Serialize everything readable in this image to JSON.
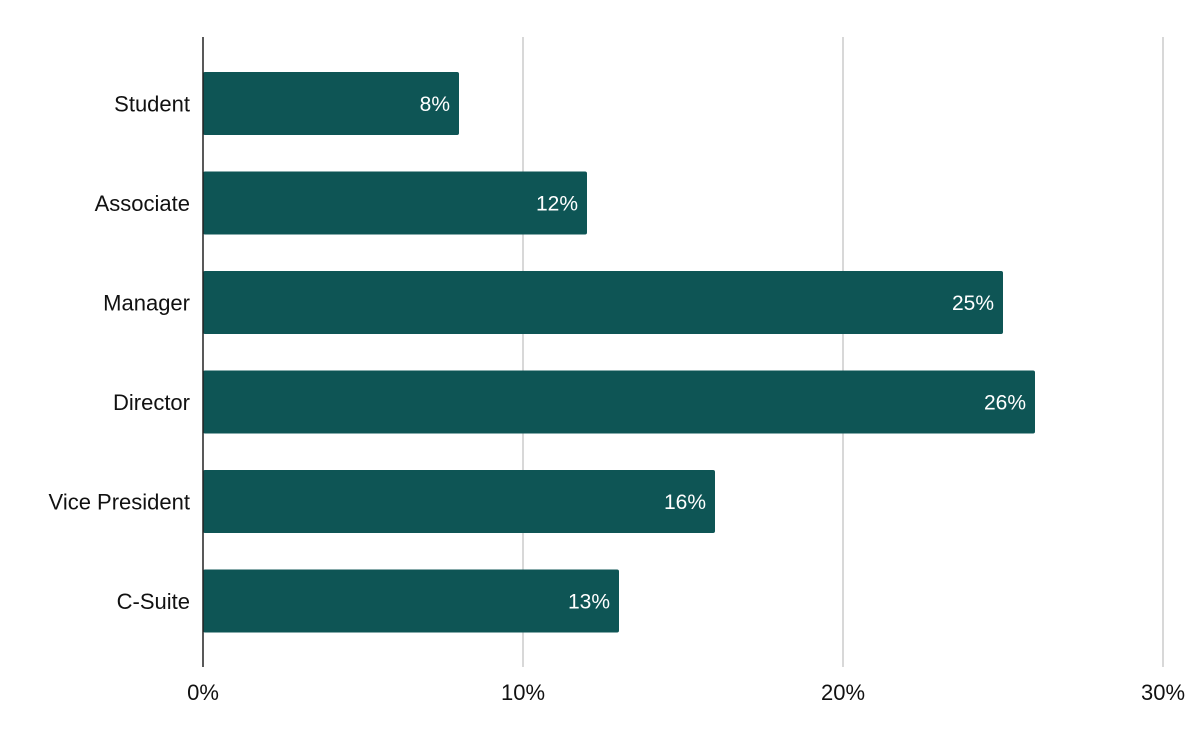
{
  "chart_data": {
    "type": "bar",
    "orientation": "horizontal",
    "categories": [
      "Student",
      "Associate",
      "Manager",
      "Director",
      "Vice President",
      "C-Suite"
    ],
    "values": [
      8,
      12,
      25,
      26,
      16,
      13
    ],
    "data_labels": [
      "8%",
      "12%",
      "25%",
      "26%",
      "16%",
      "13%"
    ],
    "title": "",
    "xlabel": "",
    "ylabel": "",
    "xlim": [
      0,
      30
    ],
    "x_ticks": [
      0,
      10,
      20,
      30
    ],
    "x_tick_labels": [
      "0%",
      "10%",
      "20%",
      "30%"
    ],
    "grid": true,
    "legend": "none",
    "colors": {
      "bar": "#0e5555",
      "grid": "#cccccc",
      "axis": "#222222"
    }
  }
}
